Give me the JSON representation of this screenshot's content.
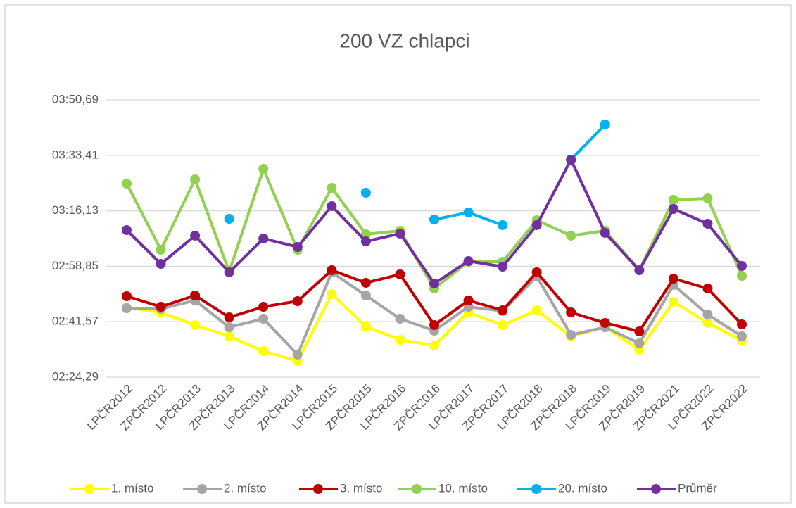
{
  "chart_data": {
    "type": "line",
    "title": "200 VZ chlapci",
    "categories": [
      "LPČR2012",
      "ZPČR2012",
      "LPČR2013",
      "ZPČR2013",
      "LPČR2014",
      "ZPČR2014",
      "LPČR2015",
      "ZPČR2015",
      "LPČR2016",
      "ZPČR2016",
      "LPČR2017",
      "ZPČR2017",
      "LPČR2018",
      "ZPČR2018",
      "LPČR2019",
      "ZPČR2019",
      "ZPČR2021",
      "LPČR2022",
      "ZPČR2022"
    ],
    "ylim": [
      144.29,
      230.69
    ],
    "yticks": [
      {
        "value": 144.29,
        "label": "02:24,29"
      },
      {
        "value": 161.57,
        "label": "02:41,57"
      },
      {
        "value": 178.85,
        "label": "02:58,85"
      },
      {
        "value": 196.13,
        "label": "03:16,13"
      },
      {
        "value": 213.41,
        "label": "03:33,41"
      },
      {
        "value": 230.69,
        "label": "03:50,69"
      }
    ],
    "grid": true,
    "legend": "bottom",
    "series": [
      {
        "name": "1. místo",
        "color": "#ffff00",
        "values": [
          166.0,
          164.47,
          160.52,
          157.01,
          152.4,
          149.33,
          170.17,
          160.08,
          155.91,
          154.16,
          164.47,
          160.52,
          165.12,
          157.01,
          159.86,
          152.84,
          167.76,
          161.18,
          155.69
        ]
      },
      {
        "name": "2. místo",
        "color": "#a5a5a5",
        "values": [
          165.78,
          165.56,
          168.19,
          159.86,
          162.49,
          151.31,
          176.97,
          169.73,
          162.49,
          158.76,
          166.22,
          164.9,
          175.65,
          157.45,
          159.86,
          154.82,
          173.02,
          163.81,
          157.01
        ]
      },
      {
        "name": "3. místo",
        "color": "#c00000",
        "values": [
          169.51,
          166.22,
          169.73,
          162.93,
          166.22,
          167.97,
          177.62,
          173.68,
          176.31,
          160.52,
          168.19,
          165.12,
          176.97,
          164.47,
          161.18,
          158.54,
          174.99,
          171.92,
          160.74
        ]
      },
      {
        "name": "10. místo",
        "color": "#92d050",
        "values": [
          204.6,
          183.98,
          205.91,
          177.19,
          209.2,
          183.98,
          203.28,
          188.81,
          189.9,
          171.92,
          180.26,
          180.26,
          193.19,
          188.37,
          189.9,
          177.62,
          199.55,
          199.99,
          175.87
        ]
      },
      {
        "name": "20. místo",
        "color": "#00b0f0",
        "values": [
          null,
          null,
          null,
          193.63,
          null,
          null,
          null,
          201.75,
          null,
          193.41,
          195.61,
          191.66,
          null,
          212.05,
          223.02,
          null,
          null,
          null,
          null
        ]
      },
      {
        "name": "Průměr",
        "color": "#7030a0",
        "values": [
          190.12,
          179.6,
          188.37,
          176.97,
          187.49,
          184.86,
          197.58,
          186.61,
          189.03,
          173.46,
          180.47,
          178.72,
          191.66,
          212.05,
          189.25,
          177.62,
          196.7,
          192.1,
          178.94
        ]
      }
    ]
  }
}
